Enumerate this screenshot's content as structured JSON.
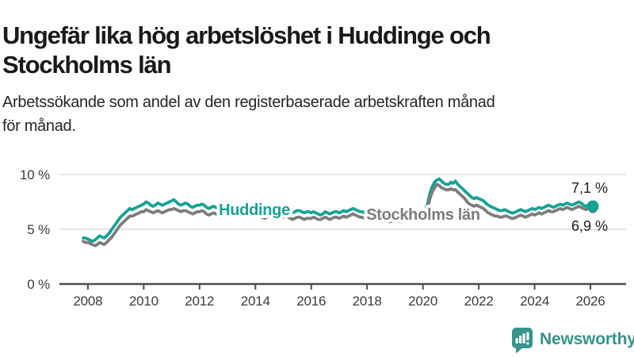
{
  "header": {
    "title_line1": "Ungefär lika hög arbetslöshet i Huddinge och",
    "title_line2": "Stockholms län",
    "subtitle_line1": "Arbetssökande som andel av den registerbaserade arbetskraften månad",
    "subtitle_line2": "för månad."
  },
  "chart_data": {
    "type": "line",
    "unit": "percent of registered labour force",
    "frequency": "monthly",
    "x_start": "2007-11",
    "x_end": "2026-02",
    "x_ticks": [
      "2008",
      "2010",
      "2012",
      "2014",
      "2016",
      "2018",
      "2020",
      "2022",
      "2024",
      "2026"
    ],
    "y_ticks": [
      "0 %",
      "5 %",
      "10 %"
    ],
    "ylim": [
      0,
      10.5
    ],
    "grid": "horizontal",
    "series": [
      {
        "name": "Huddinge",
        "color": "#17a294",
        "end_label": "7,1 %",
        "last_value": 7.1,
        "values": [
          4.2,
          4.2,
          4.1,
          4.0,
          3.9,
          4.0,
          4.2,
          4.4,
          4.3,
          4.2,
          4.4,
          4.6,
          4.9,
          5.2,
          5.5,
          5.8,
          6.1,
          6.3,
          6.5,
          6.7,
          6.9,
          6.8,
          6.9,
          7.0,
          7.1,
          7.2,
          7.3,
          7.5,
          7.4,
          7.2,
          7.1,
          7.2,
          7.4,
          7.3,
          7.2,
          7.3,
          7.4,
          7.5,
          7.6,
          7.7,
          7.5,
          7.3,
          7.2,
          7.3,
          7.4,
          7.3,
          7.1,
          7.0,
          7.1,
          7.2,
          7.2,
          7.3,
          7.2,
          7.0,
          6.9,
          7.0,
          7.1,
          7.0,
          6.9,
          7.0,
          7.0,
          7.1,
          7.0,
          7.1,
          7.0,
          6.9,
          6.8,
          6.9,
          7.0,
          6.9,
          6.8,
          6.8,
          6.9,
          6.9,
          6.8,
          6.9,
          6.8,
          6.7,
          6.6,
          6.7,
          6.8,
          6.7,
          6.6,
          6.6,
          6.7,
          6.7,
          6.7,
          6.8,
          6.7,
          6.6,
          6.5,
          6.6,
          6.7,
          6.7,
          6.6,
          6.5,
          6.6,
          6.6,
          6.5,
          6.6,
          6.5,
          6.4,
          6.3,
          6.4,
          6.6,
          6.5,
          6.4,
          6.5,
          6.6,
          6.6,
          6.5,
          6.6,
          6.7,
          6.6,
          6.7,
          6.8,
          6.9,
          6.8,
          6.7,
          6.6,
          6.6,
          6.5,
          6.5,
          6.5,
          6.4,
          6.3,
          6.3,
          6.4,
          6.5,
          6.4,
          6.3,
          6.2,
          6.2,
          6.3,
          6.3,
          6.3,
          6.2,
          6.2,
          6.3,
          6.4,
          6.5,
          6.4,
          6.4,
          6.5,
          6.5,
          6.6,
          6.7,
          6.8,
          7.3,
          8.3,
          8.9,
          9.3,
          9.5,
          9.6,
          9.4,
          9.2,
          9.1,
          9.1,
          9.3,
          9.2,
          9.4,
          9.1,
          8.9,
          8.7,
          8.5,
          8.3,
          8.1,
          7.9,
          7.8,
          7.9,
          7.8,
          7.7,
          7.6,
          7.4,
          7.2,
          7.1,
          7.0,
          6.9,
          6.8,
          6.7,
          6.7,
          6.8,
          6.7,
          6.6,
          6.5,
          6.5,
          6.6,
          6.7,
          6.8,
          6.7,
          6.6,
          6.7,
          6.8,
          6.9,
          6.8,
          6.9,
          7.0,
          6.9,
          7.0,
          7.1,
          7.2,
          7.1,
          7.0,
          7.1,
          7.2,
          7.3,
          7.2,
          7.3,
          7.4,
          7.3,
          7.2,
          7.3,
          7.4,
          7.5,
          7.4,
          7.2,
          7.1,
          7.2,
          7.2,
          7.1
        ]
      },
      {
        "name": "Stockholms län",
        "color": "#7d7d7d",
        "end_label": "6,9 %",
        "last_value": 6.9,
        "values": [
          3.9,
          3.8,
          3.8,
          3.7,
          3.6,
          3.5,
          3.6,
          3.8,
          3.7,
          3.6,
          3.8,
          4.0,
          4.2,
          4.5,
          4.8,
          5.1,
          5.4,
          5.6,
          5.8,
          6.0,
          6.2,
          6.2,
          6.3,
          6.4,
          6.5,
          6.6,
          6.6,
          6.8,
          6.7,
          6.6,
          6.5,
          6.6,
          6.7,
          6.6,
          6.5,
          6.6,
          6.7,
          6.8,
          6.8,
          6.9,
          6.8,
          6.7,
          6.6,
          6.7,
          6.7,
          6.6,
          6.5,
          6.4,
          6.5,
          6.6,
          6.6,
          6.7,
          6.6,
          6.4,
          6.3,
          6.4,
          6.5,
          6.4,
          6.3,
          6.4,
          6.4,
          6.5,
          6.4,
          6.5,
          6.4,
          6.3,
          6.2,
          6.3,
          6.4,
          6.3,
          6.2,
          6.2,
          6.3,
          6.3,
          6.2,
          6.3,
          6.2,
          6.1,
          6.0,
          6.1,
          6.2,
          6.1,
          6.0,
          6.0,
          6.1,
          6.1,
          6.1,
          6.2,
          6.1,
          6.0,
          5.9,
          6.0,
          6.1,
          6.1,
          6.0,
          5.9,
          6.0,
          6.0,
          6.0,
          6.1,
          6.0,
          5.9,
          5.9,
          6.0,
          6.1,
          6.0,
          5.9,
          6.0,
          6.1,
          6.1,
          6.0,
          6.1,
          6.2,
          6.1,
          6.2,
          6.3,
          6.4,
          6.3,
          6.2,
          6.1,
          6.1,
          6.0,
          6.0,
          6.0,
          5.9,
          5.8,
          5.8,
          5.9,
          6.0,
          5.9,
          5.8,
          5.7,
          5.7,
          5.8,
          5.8,
          5.8,
          5.7,
          5.7,
          5.8,
          5.9,
          6.0,
          5.9,
          5.9,
          6.0,
          6.0,
          6.1,
          6.2,
          6.3,
          6.9,
          7.8,
          8.4,
          8.8,
          9.1,
          9.0,
          8.8,
          8.7,
          8.6,
          8.6,
          8.7,
          8.6,
          8.6,
          8.4,
          8.2,
          8.0,
          7.8,
          7.5,
          7.3,
          7.2,
          7.1,
          7.2,
          7.1,
          7.0,
          6.9,
          6.7,
          6.5,
          6.4,
          6.3,
          6.2,
          6.2,
          6.1,
          6.1,
          6.2,
          6.2,
          6.1,
          6.0,
          6.0,
          6.1,
          6.2,
          6.3,
          6.2,
          6.1,
          6.2,
          6.3,
          6.4,
          6.3,
          6.4,
          6.5,
          6.4,
          6.5,
          6.6,
          6.7,
          6.6,
          6.6,
          6.7,
          6.8,
          6.9,
          6.8,
          6.9,
          7.0,
          6.9,
          6.8,
          6.9,
          7.0,
          7.1,
          7.0,
          6.9,
          6.8,
          6.9,
          6.9,
          6.9
        ]
      }
    ]
  },
  "footer": {
    "brand_name": "Newsworthy",
    "brand_color": "#35948c"
  }
}
